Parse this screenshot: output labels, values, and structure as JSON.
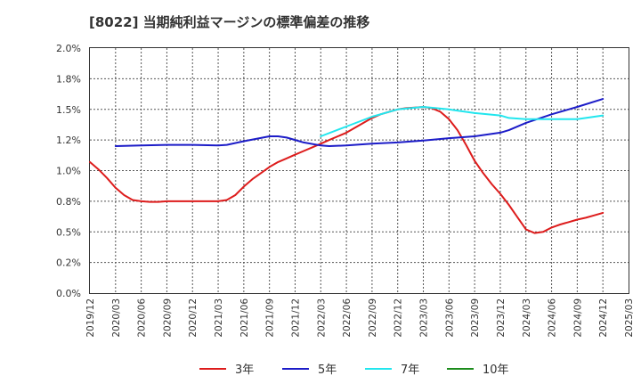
{
  "title": "[8022]  当期純利益マージンの標準偏差の推移",
  "chart_data": {
    "type": "line",
    "title": "[8022]  当期純利益マージンの標準偏差の推移",
    "xlabel": "",
    "ylabel": "",
    "ylim": [
      0,
      2.0
    ],
    "y_ticks": [
      "0.0%",
      "0.2%",
      "0.5%",
      "0.8%",
      "1.0%",
      "1.2%",
      "1.5%",
      "1.8%",
      "2.0%"
    ],
    "x_ticks": [
      "2019/12",
      "2020/03",
      "2020/06",
      "2020/09",
      "2020/12",
      "2021/03",
      "2021/06",
      "2021/09",
      "2021/12",
      "2022/03",
      "2022/06",
      "2022/09",
      "2022/12",
      "2023/03",
      "2023/06",
      "2023/09",
      "2023/12",
      "2024/03",
      "2024/06",
      "2024/09",
      "2024/12",
      "2025/03"
    ],
    "grid": true,
    "legend_position": "bottom",
    "series": [
      {
        "name": "3年",
        "color": "#dd1c1c",
        "x": [
          "2019/12",
          "2020/01",
          "2020/02",
          "2020/03",
          "2020/04",
          "2020/05",
          "2020/06",
          "2020/07",
          "2020/08",
          "2020/09",
          "2020/10",
          "2020/11",
          "2020/12",
          "2021/01",
          "2021/02",
          "2021/03",
          "2021/04",
          "2021/05",
          "2021/06",
          "2021/07",
          "2021/08",
          "2021/09",
          "2021/10",
          "2021/11",
          "2021/12",
          "2022/01",
          "2022/02",
          "2022/03",
          "2022/04",
          "2022/05",
          "2022/06",
          "2022/07",
          "2022/08",
          "2022/09",
          "2022/10",
          "2022/11",
          "2022/12",
          "2023/01",
          "2023/02",
          "2023/03",
          "2023/04",
          "2023/05",
          "2023/06",
          "2023/07",
          "2023/08",
          "2023/09",
          "2023/10",
          "2023/11",
          "2023/12",
          "2024/01",
          "2024/02",
          "2024/03",
          "2024/04",
          "2024/05",
          "2024/06",
          "2024/07",
          "2024/08",
          "2024/09",
          "2024/10",
          "2024/11",
          "2024/12"
        ],
        "values": [
          1.07,
          1.01,
          0.94,
          0.86,
          0.8,
          0.76,
          0.75,
          0.745,
          0.745,
          0.75,
          0.75,
          0.75,
          0.75,
          0.75,
          0.75,
          0.75,
          0.76,
          0.8,
          0.87,
          0.93,
          0.98,
          1.03,
          1.07,
          1.1,
          1.13,
          1.16,
          1.19,
          1.22,
          1.25,
          1.28,
          1.31,
          1.35,
          1.39,
          1.43,
          1.46,
          1.48,
          1.5,
          1.51,
          1.515,
          1.52,
          1.51,
          1.48,
          1.42,
          1.33,
          1.21,
          1.08,
          0.98,
          0.89,
          0.81,
          0.72,
          0.62,
          0.52,
          0.49,
          0.5,
          0.535,
          0.56,
          0.58,
          0.6,
          0.615,
          0.635,
          0.655
        ]
      },
      {
        "name": "5年",
        "color": "#1c1cc8",
        "x": [
          "2020/03",
          "2020/06",
          "2020/09",
          "2020/12",
          "2021/03",
          "2021/04",
          "2021/06",
          "2021/09",
          "2021/10",
          "2021/11",
          "2021/12",
          "2022/01",
          "2022/03",
          "2022/04",
          "2022/06",
          "2022/09",
          "2022/12",
          "2023/03",
          "2023/06",
          "2023/09",
          "2023/12",
          "2024/01",
          "2024/03",
          "2024/06",
          "2024/09",
          "2024/12"
        ],
        "values": [
          1.2,
          1.205,
          1.21,
          1.21,
          1.205,
          1.21,
          1.24,
          1.28,
          1.28,
          1.27,
          1.25,
          1.23,
          1.205,
          1.2,
          1.205,
          1.22,
          1.23,
          1.245,
          1.265,
          1.28,
          1.31,
          1.33,
          1.39,
          1.46,
          1.52,
          1.585
        ]
      },
      {
        "name": "7年",
        "color": "#22e6ee",
        "x": [
          "2022/03",
          "2022/06",
          "2022/09",
          "2022/12",
          "2023/03",
          "2023/06",
          "2023/09",
          "2023/12",
          "2024/01",
          "2024/03",
          "2024/06",
          "2024/09",
          "2024/12"
        ],
        "values": [
          1.28,
          1.36,
          1.44,
          1.5,
          1.52,
          1.5,
          1.47,
          1.45,
          1.43,
          1.42,
          1.42,
          1.42,
          1.45
        ]
      },
      {
        "name": "10年",
        "color": "#1c8c1c",
        "x": [],
        "values": []
      }
    ]
  }
}
